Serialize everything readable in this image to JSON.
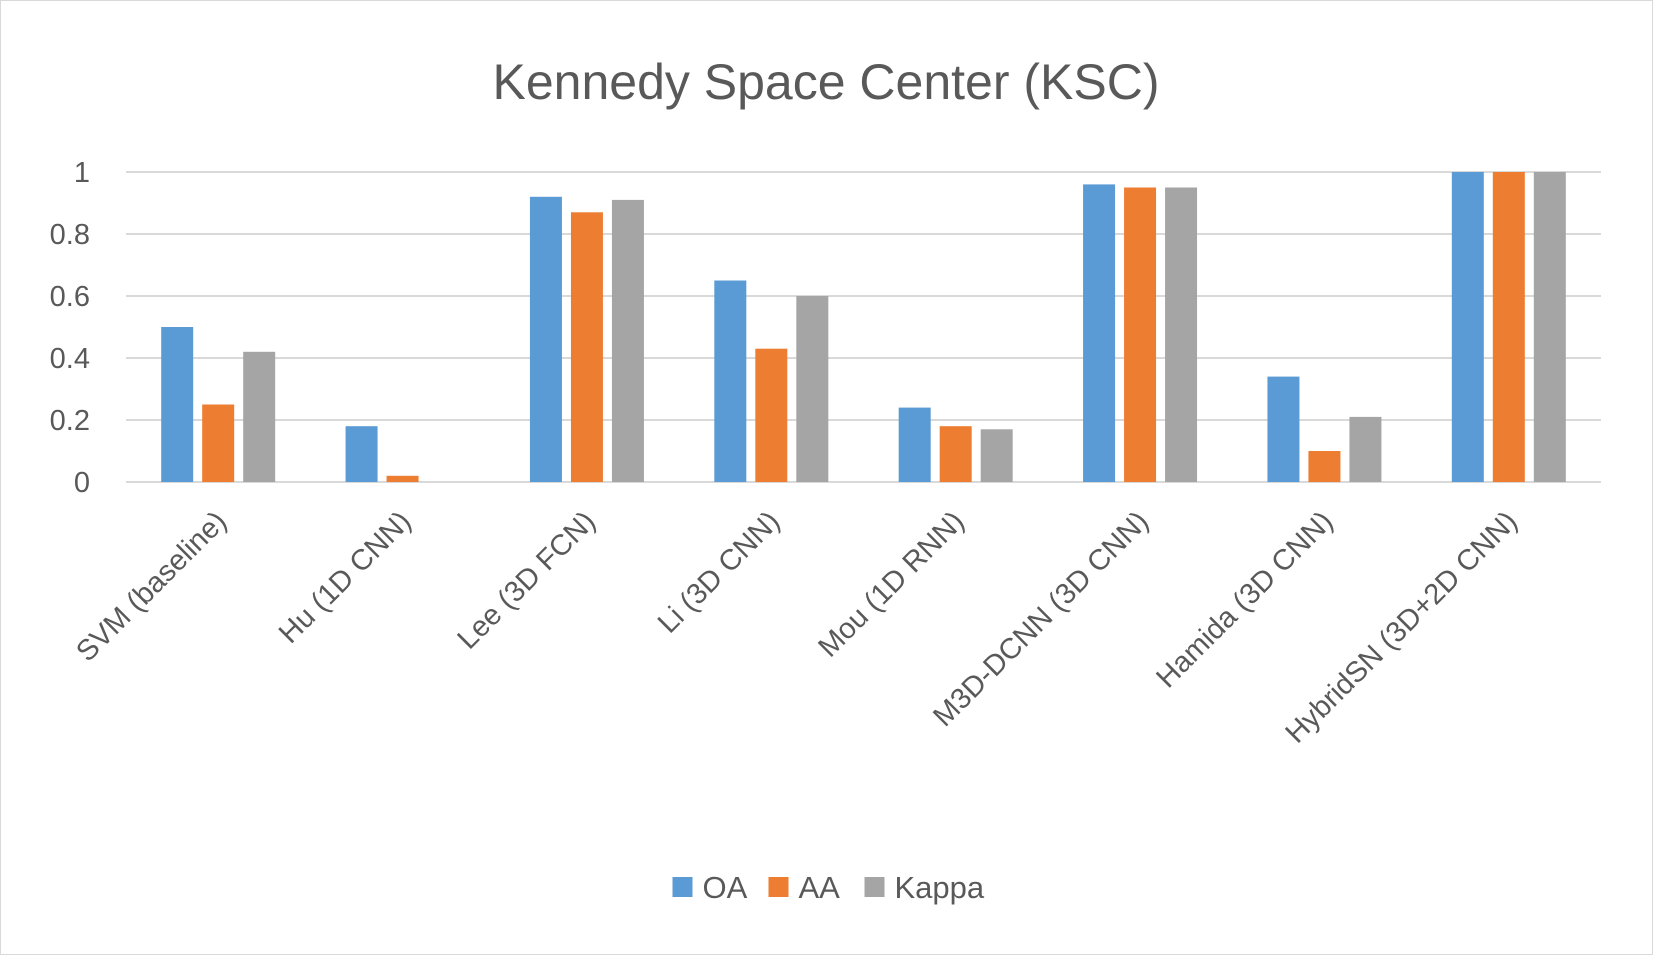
{
  "chart_data": {
    "type": "bar",
    "title": "Kennedy Space Center (KSC)",
    "categories": [
      "SVM (baseline)",
      "Hu (1D CNN)",
      "Lee (3D FCN)",
      "Li (3D CNN)",
      "Mou (1D RNN)",
      "M3D-DCNN (3D CNN)",
      "Hamida (3D CNN)",
      "HybridSN (3D+2D CNN)"
    ],
    "series": [
      {
        "name": "OA",
        "color": "#5b9bd5",
        "values": [
          0.5,
          0.18,
          0.92,
          0.65,
          0.24,
          0.96,
          0.34,
          1.0
        ]
      },
      {
        "name": "AA",
        "color": "#ed7d31",
        "values": [
          0.25,
          0.02,
          0.87,
          0.43,
          0.18,
          0.95,
          0.1,
          1.0
        ]
      },
      {
        "name": "Kappa",
        "color": "#a5a5a5",
        "values": [
          0.42,
          0.0,
          0.91,
          0.6,
          0.17,
          0.95,
          0.21,
          1.0
        ]
      }
    ],
    "ylim": [
      0,
      1
    ],
    "yticks": [
      "0",
      "0.2",
      "0.4",
      "0.6",
      "0.8",
      "1"
    ],
    "ytick_values": [
      0,
      0.2,
      0.4,
      0.6,
      0.8,
      1
    ],
    "grid": true,
    "legend_position": "bottom"
  }
}
